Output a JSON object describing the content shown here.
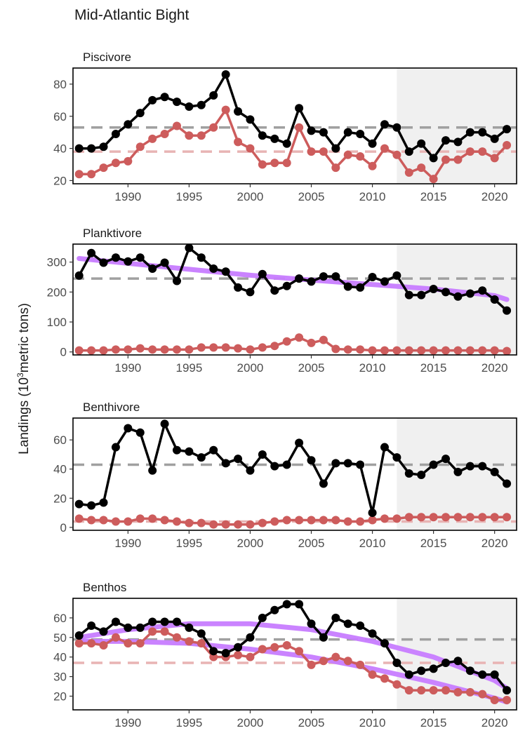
{
  "title": "Mid-Atlantic Bight",
  "y_axis_label_pre": "Landings (10",
  "y_axis_label_sup": "3",
  "y_axis_label_post": "metric tons)",
  "colors": {
    "total": "#000000",
    "commercial": "#cd5c5c",
    "trend": "#c77cff",
    "shade": "#f0f0f0",
    "mean_total": "#a0a0a0",
    "mean_commercial": "#e8b4b4"
  },
  "chart_data": [
    {
      "type": "line",
      "panel": "Piscivore",
      "x": [
        1986,
        1987,
        1988,
        1989,
        1990,
        1991,
        1992,
        1993,
        1994,
        1995,
        1996,
        1997,
        1998,
        1999,
        2000,
        2001,
        2002,
        2003,
        2004,
        2005,
        2006,
        2007,
        2008,
        2009,
        2010,
        2011,
        2012,
        2013,
        2014,
        2015,
        2016,
        2017,
        2018,
        2019,
        2020,
        2021
      ],
      "xlim": [
        1985.5,
        2021.8
      ],
      "xticks": [
        1990,
        1995,
        2000,
        2005,
        2010,
        2015,
        2020
      ],
      "ylim": [
        18,
        90
      ],
      "yticks": [
        20,
        40,
        60,
        80
      ],
      "shade_start": 2012,
      "series": [
        {
          "role": "total",
          "values": [
            40,
            40,
            41,
            49,
            55,
            62,
            70,
            72,
            69,
            66,
            67,
            73,
            86,
            63,
            58,
            48,
            46,
            43,
            65,
            51,
            50,
            40,
            50,
            49,
            43,
            55,
            53,
            38,
            43,
            34,
            45,
            44,
            50,
            50,
            46,
            52
          ]
        },
        {
          "role": "commercial",
          "values": [
            24,
            24,
            28,
            31,
            32,
            41,
            46,
            49,
            54,
            48,
            48,
            53,
            64,
            44,
            40,
            30,
            31,
            31,
            53,
            38,
            38,
            28,
            36,
            35,
            29,
            40,
            36,
            25,
            28,
            21,
            33,
            33,
            38,
            38,
            34,
            42
          ]
        }
      ],
      "means": {
        "total": 53,
        "commercial": 38
      },
      "trends": []
    },
    {
      "type": "line",
      "panel": "Planktivore",
      "x": [
        1986,
        1987,
        1988,
        1989,
        1990,
        1991,
        1992,
        1993,
        1994,
        1995,
        1996,
        1997,
        1998,
        1999,
        2000,
        2001,
        2002,
        2003,
        2004,
        2005,
        2006,
        2007,
        2008,
        2009,
        2010,
        2011,
        2012,
        2013,
        2014,
        2015,
        2016,
        2017,
        2018,
        2019,
        2020,
        2021
      ],
      "xlim": [
        1985.5,
        2021.8
      ],
      "xticks": [
        1990,
        1995,
        2000,
        2005,
        2010,
        2015,
        2020
      ],
      "ylim": [
        -10,
        360
      ],
      "yticks": [
        0,
        100,
        200,
        300
      ],
      "shade_start": 2012,
      "series": [
        {
          "role": "total",
          "values": [
            255,
            330,
            298,
            315,
            302,
            315,
            278,
            298,
            237,
            347,
            315,
            278,
            268,
            215,
            200,
            260,
            205,
            220,
            245,
            235,
            252,
            252,
            218,
            215,
            250,
            235,
            255,
            190,
            190,
            210,
            200,
            185,
            195,
            205,
            175,
            138
          ]
        },
        {
          "role": "commercial",
          "values": [
            5,
            5,
            5,
            8,
            8,
            12,
            8,
            8,
            8,
            8,
            15,
            15,
            15,
            12,
            8,
            15,
            20,
            35,
            48,
            30,
            40,
            10,
            8,
            8,
            5,
            5,
            5,
            5,
            5,
            5,
            5,
            5,
            5,
            5,
            5,
            3
          ]
        }
      ],
      "means": {
        "total": 245,
        "commercial": null
      },
      "trends": [
        {
          "x": [
            1986,
            1990,
            1995,
            2000,
            2005,
            2010,
            2015,
            2020,
            2021
          ],
          "values": [
            312,
            296,
            276,
            256,
            240,
            225,
            210,
            188,
            175
          ]
        }
      ]
    },
    {
      "type": "line",
      "panel": "Benthivore",
      "x": [
        1986,
        1987,
        1988,
        1989,
        1990,
        1991,
        1992,
        1993,
        1994,
        1995,
        1996,
        1997,
        1998,
        1999,
        2000,
        2001,
        2002,
        2003,
        2004,
        2005,
        2006,
        2007,
        2008,
        2009,
        2010,
        2011,
        2012,
        2013,
        2014,
        2015,
        2016,
        2017,
        2018,
        2019,
        2020,
        2021
      ],
      "xlim": [
        1985.5,
        2021.8
      ],
      "xticks": [
        1990,
        1995,
        2000,
        2005,
        2010,
        2015,
        2020
      ],
      "ylim": [
        -2,
        75
      ],
      "yticks": [
        0,
        20,
        40,
        60
      ],
      "shade_start": 2012,
      "series": [
        {
          "role": "total",
          "values": [
            16,
            15,
            17,
            55,
            68,
            65,
            39,
            71,
            53,
            52,
            48,
            53,
            44,
            47,
            39,
            50,
            42,
            43,
            58,
            46,
            30,
            44,
            44,
            43,
            10,
            55,
            48,
            37,
            36,
            43,
            47,
            38,
            42,
            42,
            38,
            30
          ]
        },
        {
          "role": "commercial",
          "values": [
            6,
            5,
            5,
            4,
            4,
            6,
            6,
            5,
            4,
            3,
            3,
            2,
            2,
            2,
            2,
            3,
            4,
            5,
            5,
            5,
            5,
            5,
            4,
            4,
            5,
            6,
            6,
            7,
            7,
            7,
            7,
            7,
            7,
            7,
            7,
            7
          ]
        }
      ],
      "means": {
        "total": 43,
        "commercial": 4
      },
      "trends": []
    },
    {
      "type": "line",
      "panel": "Benthos",
      "x": [
        1986,
        1987,
        1988,
        1989,
        1990,
        1991,
        1992,
        1993,
        1994,
        1995,
        1996,
        1997,
        1998,
        1999,
        2000,
        2001,
        2002,
        2003,
        2004,
        2005,
        2006,
        2007,
        2008,
        2009,
        2010,
        2011,
        2012,
        2013,
        2014,
        2015,
        2016,
        2017,
        2018,
        2019,
        2020,
        2021
      ],
      "xlim": [
        1985.5,
        2021.8
      ],
      "xticks": [
        1990,
        1995,
        2000,
        2005,
        2010,
        2015,
        2020
      ],
      "ylim": [
        13,
        70
      ],
      "yticks": [
        20,
        30,
        40,
        50,
        60
      ],
      "shade_start": 2012,
      "series": [
        {
          "role": "total",
          "values": [
            51,
            56,
            53,
            58,
            55,
            55,
            58,
            58,
            58,
            55,
            52,
            43,
            42,
            45,
            50,
            60,
            64,
            67,
            67,
            57,
            50,
            60,
            57,
            56,
            52,
            47,
            37,
            31,
            33,
            34,
            37,
            38,
            33,
            31,
            31,
            23
          ]
        },
        {
          "role": "commercial",
          "values": [
            47,
            47,
            46,
            50,
            47,
            47,
            53,
            53,
            50,
            48,
            47,
            40,
            40,
            41,
            40,
            44,
            45,
            46,
            43,
            36,
            38,
            40,
            38,
            36,
            31,
            29,
            26,
            23,
            23,
            23,
            23,
            22,
            22,
            21,
            18,
            18
          ]
        }
      ],
      "means": {
        "total": 49,
        "commercial": 37
      },
      "trends": [
        {
          "x": [
            1986,
            1990,
            1995,
            2000,
            2005,
            2010,
            2015,
            2020,
            2021
          ],
          "values": [
            50,
            54,
            57,
            57,
            54,
            48,
            40,
            28,
            24
          ]
        },
        {
          "x": [
            1986,
            1990,
            1995,
            2000,
            2005,
            2010,
            2015,
            2020,
            2021
          ],
          "values": [
            48,
            48,
            47,
            44,
            40,
            34,
            27,
            19,
            17
          ]
        }
      ]
    }
  ]
}
